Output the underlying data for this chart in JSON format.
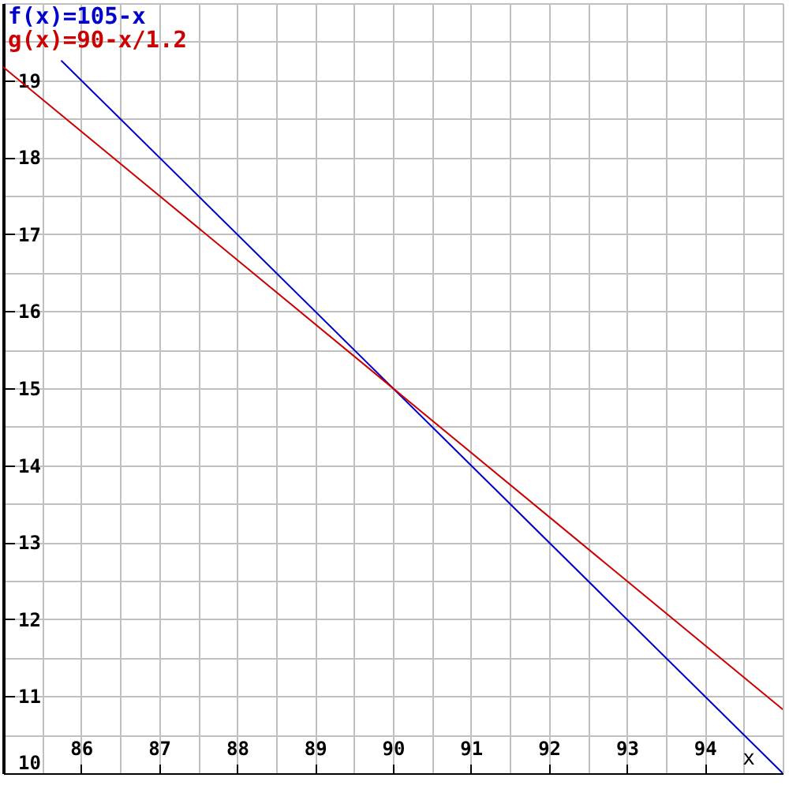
{
  "chart_data": {
    "type": "line",
    "xlabel": "x",
    "xlim": [
      85,
      95
    ],
    "ylim": [
      10,
      20
    ],
    "xticks": [
      {
        "value": 85,
        "label": null
      },
      {
        "value": 85.5,
        "label": null
      },
      86,
      {
        "value": 86.5,
        "label": null
      },
      87,
      {
        "value": 87.5,
        "label": null
      },
      88,
      {
        "value": 88.5,
        "label": null
      },
      89,
      {
        "value": 89.5,
        "label": null
      },
      90,
      {
        "value": 90.5,
        "label": null
      },
      91,
      {
        "value": 91.5,
        "label": null
      },
      92,
      {
        "value": 92.5,
        "label": null
      },
      93,
      {
        "value": 93.5,
        "label": null
      },
      94,
      {
        "value": 94.5,
        "label": null
      },
      {
        "value": 95,
        "label": null
      }
    ],
    "yticks": [
      10,
      {
        "value": 10.5,
        "label": null
      },
      11,
      {
        "value": 11.5,
        "label": null
      },
      12,
      {
        "value": 12.5,
        "label": null
      },
      13,
      {
        "value": 13.5,
        "label": null
      },
      14,
      {
        "value": 14.5,
        "label": null
      },
      15,
      {
        "value": 15.5,
        "label": null
      },
      16,
      {
        "value": 16.5,
        "label": null
      },
      17,
      {
        "value": 17.5,
        "label": null
      },
      18,
      {
        "value": 18.5,
        "label": null
      },
      19,
      {
        "value": 19.5,
        "label": null
      },
      {
        "value": 20,
        "label": null
      }
    ],
    "grid": true,
    "legend": "top left",
    "series": [
      {
        "name": "f(x)=105-x",
        "color": "#0000cc",
        "x": [
          85.75,
          95
        ],
        "values": [
          19.25,
          10
        ]
      },
      {
        "name": "g(x)=90-x/1.2",
        "color": "#cc0000",
        "x": [
          85,
          95
        ],
        "values": [
          19.17,
          10.83
        ]
      }
    ]
  }
}
